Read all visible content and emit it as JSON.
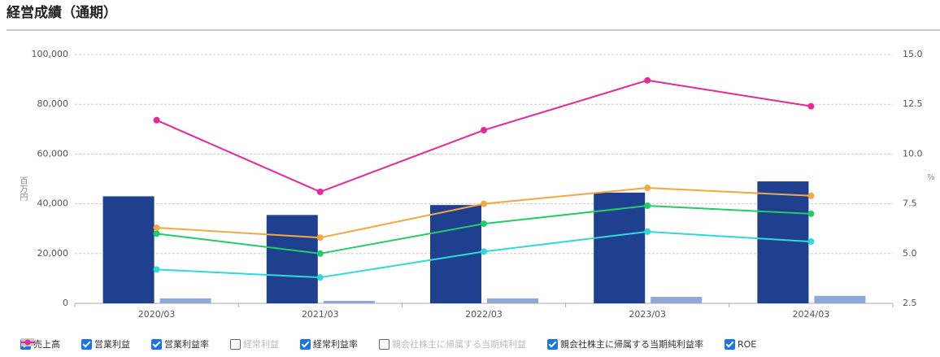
{
  "chart_data": {
    "type": "bar-line",
    "title": "経営成績（通期）",
    "categories": [
      "2020/03",
      "2021/03",
      "2022/03",
      "2023/03",
      "2024/03"
    ],
    "ylabel": "百万円",
    "y2label": "%",
    "ylim": [
      0,
      100000
    ],
    "yticks": [
      0,
      {
        "value": 20000,
        "label": "20,000"
      },
      {
        "value": 40000,
        "label": "40,000"
      },
      {
        "value": 60000,
        "label": "60,000"
      },
      {
        "value": 80000,
        "label": "80,000"
      },
      {
        "value": 100000,
        "label": "100,000"
      }
    ],
    "y2lim": [
      2.5,
      15
    ],
    "y2ticks": [
      2.5,
      {
        "value": 5,
        "label": "5.0"
      },
      7.5,
      {
        "value": 10,
        "label": "10.0"
      },
      12.5,
      {
        "value": 15,
        "label": "15.0"
      }
    ],
    "grid": true,
    "series": [
      {
        "name": "売上高",
        "type": "bar",
        "visible": true,
        "color": "#1f3f8f",
        "values": [
          43000,
          35500,
          39500,
          44500,
          49000
        ]
      },
      {
        "name": "営業利益",
        "type": "bar",
        "visible": true,
        "color": "#8fa8d8",
        "values": [
          2000,
          1000,
          2000,
          2600,
          3000
        ]
      },
      {
        "name": "営業利益率",
        "type": "line",
        "axis": "y2",
        "visible": true,
        "color": "#22cc66",
        "values": [
          6.0,
          5.0,
          6.5,
          7.4,
          7.0
        ]
      },
      {
        "name": "経常利益",
        "type": "bar",
        "visible": false,
        "color": "#c8c8c8",
        "values": [
          null,
          null,
          null,
          null,
          null
        ]
      },
      {
        "name": "経常利益率",
        "type": "line",
        "axis": "y2",
        "visible": true,
        "color": "#f5a742",
        "values": [
          6.3,
          5.8,
          7.5,
          8.3,
          7.9
        ]
      },
      {
        "name": "親会社株主に帰属する当期純利益",
        "type": "bar",
        "visible": false,
        "color": "#c8c8c8",
        "values": [
          null,
          null,
          null,
          null,
          null
        ]
      },
      {
        "name": "親会社株主に帰属する当期純利益率",
        "type": "line",
        "axis": "y2",
        "visible": true,
        "color": "#2fd9d9",
        "values": [
          4.2,
          3.8,
          5.1,
          6.1,
          5.6
        ]
      },
      {
        "name": "ROE",
        "type": "line",
        "axis": "y2",
        "visible": true,
        "color": "#e6289b",
        "values": [
          11.7,
          8.1,
          11.2,
          13.7,
          12.4
        ]
      }
    ]
  }
}
